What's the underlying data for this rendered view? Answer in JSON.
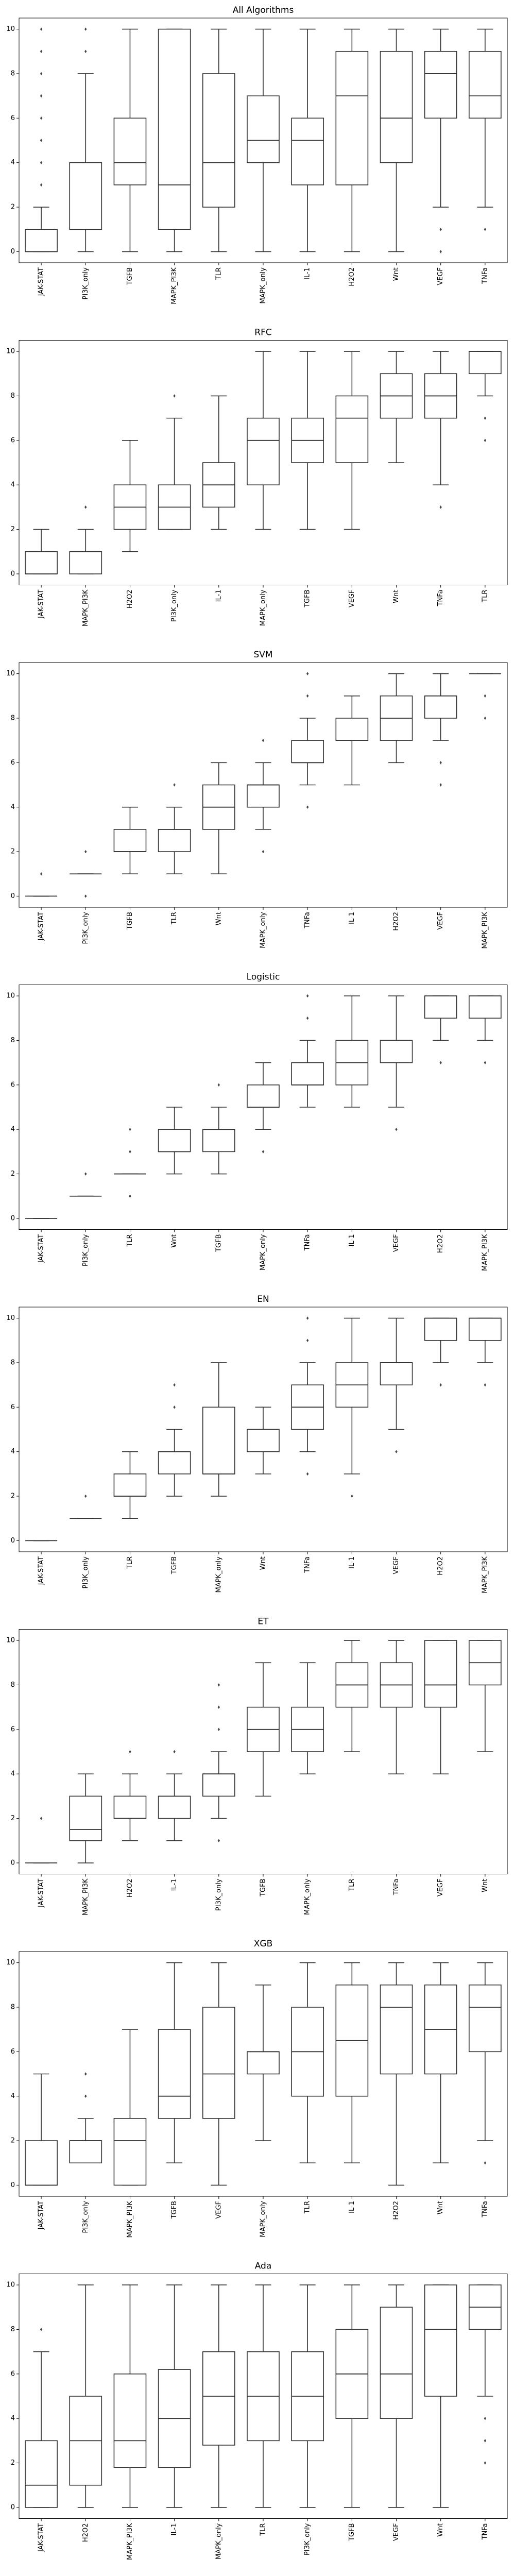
{
  "chart_data": [
    {
      "type": "box",
      "title": "All Algorithms",
      "ylim": [
        -0.5,
        10.5
      ],
      "yticks": [
        0,
        2,
        4,
        6,
        8,
        10
      ],
      "categories": [
        "JAK-STAT",
        "PI3K_only",
        "TGFB",
        "MAPK_PI3K",
        "TLR",
        "MAPK_only",
        "IL-1",
        "H2O2",
        "Wnt",
        "VEGF",
        "TNFa"
      ],
      "boxes": [
        {
          "whislo": 0,
          "q1": 0,
          "med": 0,
          "q3": 1,
          "whishi": 2,
          "fliers": [
            3,
            4,
            5,
            6,
            7,
            8,
            9,
            10
          ]
        },
        {
          "whislo": 0,
          "q1": 1,
          "med": 1,
          "q3": 4,
          "whishi": 8,
          "fliers": [
            9,
            10
          ]
        },
        {
          "whislo": 0,
          "q1": 3,
          "med": 4,
          "q3": 6,
          "whishi": 10,
          "fliers": []
        },
        {
          "whislo": 0,
          "q1": 1,
          "med": 3,
          "q3": 10,
          "whishi": 10,
          "fliers": []
        },
        {
          "whislo": 0,
          "q1": 2,
          "med": 4,
          "q3": 8,
          "whishi": 10,
          "fliers": []
        },
        {
          "whislo": 0,
          "q1": 4,
          "med": 5,
          "q3": 7,
          "whishi": 10,
          "fliers": []
        },
        {
          "whislo": 0,
          "q1": 3,
          "med": 5,
          "q3": 6,
          "whishi": 10,
          "fliers": []
        },
        {
          "whislo": 0,
          "q1": 3,
          "med": 7,
          "q3": 9,
          "whishi": 10,
          "fliers": []
        },
        {
          "whislo": 0,
          "q1": 4,
          "med": 6,
          "q3": 9,
          "whishi": 10,
          "fliers": []
        },
        {
          "whislo": 2,
          "q1": 6,
          "med": 8,
          "q3": 9,
          "whishi": 10,
          "fliers": [
            0,
            1
          ]
        },
        {
          "whislo": 2,
          "q1": 6,
          "med": 7,
          "q3": 9,
          "whishi": 10,
          "fliers": [
            1
          ]
        }
      ]
    },
    {
      "type": "box",
      "title": "RFC",
      "ylim": [
        -0.5,
        10.5
      ],
      "yticks": [
        0,
        2,
        4,
        6,
        8,
        10
      ],
      "categories": [
        "JAK-STAT",
        "MAPK_PI3K",
        "H2O2",
        "PI3K_only",
        "IL-1",
        "MAPK_only",
        "TGFB",
        "VEGF",
        "Wnt",
        "TNFa",
        "TLR"
      ],
      "boxes": [
        {
          "whislo": 0,
          "q1": 0,
          "med": 0,
          "q3": 1,
          "whishi": 2,
          "fliers": []
        },
        {
          "whislo": 0,
          "q1": 0,
          "med": 1,
          "q3": 1,
          "whishi": 2,
          "fliers": [
            3
          ]
        },
        {
          "whislo": 1,
          "q1": 2,
          "med": 3,
          "q3": 4,
          "whishi": 6,
          "fliers": []
        },
        {
          "whislo": 2,
          "q1": 2,
          "med": 3,
          "q3": 4,
          "whishi": 7,
          "fliers": [
            8
          ]
        },
        {
          "whislo": 2,
          "q1": 3,
          "med": 4,
          "q3": 5,
          "whishi": 8,
          "fliers": []
        },
        {
          "whislo": 2,
          "q1": 4,
          "med": 6,
          "q3": 7,
          "whishi": 10,
          "fliers": []
        },
        {
          "whislo": 2,
          "q1": 5,
          "med": 6,
          "q3": 7,
          "whishi": 10,
          "fliers": []
        },
        {
          "whislo": 2,
          "q1": 5,
          "med": 7,
          "q3": 8,
          "whishi": 10,
          "fliers": []
        },
        {
          "whislo": 5,
          "q1": 7,
          "med": 8,
          "q3": 9,
          "whishi": 10,
          "fliers": []
        },
        {
          "whislo": 4,
          "q1": 7,
          "med": 8,
          "q3": 9,
          "whishi": 10,
          "fliers": [
            3
          ]
        },
        {
          "whislo": 8,
          "q1": 9,
          "med": 10,
          "q3": 10,
          "whishi": 10,
          "fliers": [
            6,
            7
          ]
        }
      ]
    },
    {
      "type": "box",
      "title": "SVM",
      "ylim": [
        -0.5,
        10.5
      ],
      "yticks": [
        0,
        2,
        4,
        6,
        8,
        10
      ],
      "categories": [
        "JAK-STAT",
        "PI3K_only",
        "TGFB",
        "TLR",
        "Wnt",
        "MAPK_only",
        "TNFa",
        "IL-1",
        "H2O2",
        "VEGF",
        "MAPK_PI3K"
      ],
      "boxes": [
        {
          "whislo": 0,
          "q1": 0,
          "med": 0,
          "q3": 0,
          "whishi": 0,
          "fliers": [
            1
          ]
        },
        {
          "whislo": 1,
          "q1": 1,
          "med": 1,
          "q3": 1,
          "whishi": 1,
          "fliers": [
            0,
            2
          ]
        },
        {
          "whislo": 1,
          "q1": 2,
          "med": 2,
          "q3": 3,
          "whishi": 4,
          "fliers": []
        },
        {
          "whislo": 1,
          "q1": 2,
          "med": 3,
          "q3": 3,
          "whishi": 4,
          "fliers": [
            5
          ]
        },
        {
          "whislo": 1,
          "q1": 3,
          "med": 4,
          "q3": 5,
          "whishi": 6,
          "fliers": []
        },
        {
          "whislo": 3,
          "q1": 4,
          "med": 5,
          "q3": 5,
          "whishi": 6,
          "fliers": [
            2,
            7
          ]
        },
        {
          "whislo": 5,
          "q1": 6,
          "med": 6,
          "q3": 7,
          "whishi": 8,
          "fliers": [
            4,
            9,
            10
          ]
        },
        {
          "whislo": 5,
          "q1": 7,
          "med": 7,
          "q3": 8,
          "whishi": 9,
          "fliers": []
        },
        {
          "whislo": 6,
          "q1": 7,
          "med": 8,
          "q3": 9,
          "whishi": 10,
          "fliers": []
        },
        {
          "whislo": 7,
          "q1": 8,
          "med": 9,
          "q3": 9,
          "whishi": 10,
          "fliers": [
            5,
            6
          ]
        },
        {
          "whislo": 10,
          "q1": 10,
          "med": 10,
          "q3": 10,
          "whishi": 10,
          "fliers": [
            8,
            9
          ]
        }
      ]
    },
    {
      "type": "box",
      "title": "Logistic",
      "ylim": [
        -0.5,
        10.5
      ],
      "yticks": [
        0,
        2,
        4,
        6,
        8,
        10
      ],
      "categories": [
        "JAK-STAT",
        "PI3K_only",
        "TLR",
        "Wnt",
        "TGFB",
        "MAPK_only",
        "TNFa",
        "IL-1",
        "VEGF",
        "H2O2",
        "MAPK_PI3K"
      ],
      "boxes": [
        {
          "whislo": 0,
          "q1": 0,
          "med": 0,
          "q3": 0,
          "whishi": 0,
          "fliers": []
        },
        {
          "whislo": 1,
          "q1": 1,
          "med": 1,
          "q3": 1,
          "whishi": 1,
          "fliers": [
            2
          ]
        },
        {
          "whislo": 2,
          "q1": 2,
          "med": 2,
          "q3": 2,
          "whishi": 2,
          "fliers": [
            1,
            3,
            4
          ]
        },
        {
          "whislo": 2,
          "q1": 3,
          "med": 3,
          "q3": 4,
          "whishi": 5,
          "fliers": []
        },
        {
          "whislo": 2,
          "q1": 3,
          "med": 4,
          "q3": 4,
          "whishi": 5,
          "fliers": [
            6
          ]
        },
        {
          "whislo": 4,
          "q1": 5,
          "med": 5,
          "q3": 6,
          "whishi": 7,
          "fliers": [
            3
          ]
        },
        {
          "whislo": 5,
          "q1": 6,
          "med": 6,
          "q3": 7,
          "whishi": 8,
          "fliers": [
            9,
            10
          ]
        },
        {
          "whislo": 5,
          "q1": 6,
          "med": 7,
          "q3": 8,
          "whishi": 10,
          "fliers": []
        },
        {
          "whislo": 5,
          "q1": 7,
          "med": 8,
          "q3": 8,
          "whishi": 10,
          "fliers": [
            4
          ]
        },
        {
          "whislo": 8,
          "q1": 9,
          "med": 10,
          "q3": 10,
          "whishi": 10,
          "fliers": [
            7
          ]
        },
        {
          "whislo": 8,
          "q1": 9,
          "med": 10,
          "q3": 10,
          "whishi": 10,
          "fliers": [
            7
          ]
        }
      ]
    },
    {
      "type": "box",
      "title": "EN",
      "ylim": [
        -0.5,
        10.5
      ],
      "yticks": [
        0,
        2,
        4,
        6,
        8,
        10
      ],
      "categories": [
        "JAK-STAT",
        "PI3K_only",
        "TLR",
        "TGFB",
        "MAPK_only",
        "Wnt",
        "TNFa",
        "IL-1",
        "VEGF",
        "H2O2",
        "MAPK_PI3K"
      ],
      "boxes": [
        {
          "whislo": 0,
          "q1": 0,
          "med": 0,
          "q3": 0,
          "whishi": 0,
          "fliers": []
        },
        {
          "whislo": 1,
          "q1": 1,
          "med": 1,
          "q3": 1,
          "whishi": 1,
          "fliers": [
            2
          ]
        },
        {
          "whislo": 1,
          "q1": 2,
          "med": 2,
          "q3": 3,
          "whishi": 4,
          "fliers": []
        },
        {
          "whislo": 2,
          "q1": 3,
          "med": 4,
          "q3": 4,
          "whishi": 5,
          "fliers": [
            6,
            7
          ]
        },
        {
          "whislo": 2,
          "q1": 3,
          "med": 3,
          "q3": 6,
          "whishi": 8,
          "fliers": []
        },
        {
          "whislo": 3,
          "q1": 4,
          "med": 5,
          "q3": 5,
          "whishi": 6,
          "fliers": []
        },
        {
          "whislo": 4,
          "q1": 5,
          "med": 6,
          "q3": 7,
          "whishi": 8,
          "fliers": [
            3,
            9,
            10
          ]
        },
        {
          "whislo": 3,
          "q1": 6,
          "med": 7,
          "q3": 8,
          "whishi": 10,
          "fliers": [
            2
          ]
        },
        {
          "whislo": 5,
          "q1": 7,
          "med": 8,
          "q3": 8,
          "whishi": 10,
          "fliers": [
            4
          ]
        },
        {
          "whislo": 8,
          "q1": 9,
          "med": 10,
          "q3": 10,
          "whishi": 10,
          "fliers": [
            7
          ]
        },
        {
          "whislo": 8,
          "q1": 9,
          "med": 10,
          "q3": 10,
          "whishi": 10,
          "fliers": [
            7
          ]
        }
      ]
    },
    {
      "type": "box",
      "title": "ET",
      "ylim": [
        -0.5,
        10.5
      ],
      "yticks": [
        0,
        2,
        4,
        6,
        8,
        10
      ],
      "categories": [
        "JAK-STAT",
        "MAPK_PI3K",
        "H2O2",
        "IL-1",
        "PI3K_only",
        "TGFB",
        "MAPK_only",
        "TLR",
        "TNFa",
        "VEGF",
        "Wnt"
      ],
      "boxes": [
        {
          "whislo": 0,
          "q1": 0,
          "med": 0,
          "q3": 0,
          "whishi": 0,
          "fliers": [
            2
          ]
        },
        {
          "whislo": 0,
          "q1": 1,
          "med": 1.5,
          "q3": 3,
          "whishi": 4,
          "fliers": []
        },
        {
          "whislo": 1,
          "q1": 2,
          "med": 2,
          "q3": 3,
          "whishi": 4,
          "fliers": [
            5
          ]
        },
        {
          "whislo": 1,
          "q1": 2,
          "med": 3,
          "q3": 3,
          "whishi": 4,
          "fliers": [
            5
          ]
        },
        {
          "whislo": 2,
          "q1": 3,
          "med": 4,
          "q3": 4,
          "whishi": 5,
          "fliers": [
            1,
            6,
            7,
            8
          ]
        },
        {
          "whislo": 3,
          "q1": 5,
          "med": 6,
          "q3": 7,
          "whishi": 9,
          "fliers": []
        },
        {
          "whislo": 4,
          "q1": 5,
          "med": 6,
          "q3": 7,
          "whishi": 9,
          "fliers": []
        },
        {
          "whislo": 5,
          "q1": 7,
          "med": 8,
          "q3": 9,
          "whishi": 10,
          "fliers": []
        },
        {
          "whislo": 4,
          "q1": 7,
          "med": 8,
          "q3": 9,
          "whishi": 10,
          "fliers": []
        },
        {
          "whislo": 4,
          "q1": 7,
          "med": 8,
          "q3": 10,
          "whishi": 10,
          "fliers": []
        },
        {
          "whislo": 5,
          "q1": 8,
          "med": 9,
          "q3": 10,
          "whishi": 10,
          "fliers": []
        }
      ]
    },
    {
      "type": "box",
      "title": "XGB",
      "ylim": [
        -0.5,
        10.5
      ],
      "yticks": [
        0,
        2,
        4,
        6,
        8,
        10
      ],
      "categories": [
        "JAK-STAT",
        "PI3K_only",
        "MAPK_PI3K",
        "TGFB",
        "VEGF",
        "MAPK_only",
        "TLR",
        "IL-1",
        "H2O2",
        "Wnt",
        "TNFa"
      ],
      "boxes": [
        {
          "whislo": 0,
          "q1": 0,
          "med": 0,
          "q3": 2,
          "whishi": 5,
          "fliers": []
        },
        {
          "whislo": 1,
          "q1": 1,
          "med": 2,
          "q3": 2,
          "whishi": 3,
          "fliers": [
            4,
            5
          ]
        },
        {
          "whislo": 0,
          "q1": 0,
          "med": 2,
          "q3": 3,
          "whishi": 7,
          "fliers": []
        },
        {
          "whislo": 1,
          "q1": 3,
          "med": 4,
          "q3": 7,
          "whishi": 10,
          "fliers": []
        },
        {
          "whislo": 0,
          "q1": 3,
          "med": 5,
          "q3": 8,
          "whishi": 10,
          "fliers": []
        },
        {
          "whislo": 2,
          "q1": 5,
          "med": 6,
          "q3": 6,
          "whishi": 9,
          "fliers": []
        },
        {
          "whislo": 1,
          "q1": 4,
          "med": 6,
          "q3": 8,
          "whishi": 10,
          "fliers": []
        },
        {
          "whislo": 1,
          "q1": 4,
          "med": 6.5,
          "q3": 9,
          "whishi": 10,
          "fliers": []
        },
        {
          "whislo": 0,
          "q1": 5,
          "med": 8,
          "q3": 9,
          "whishi": 10,
          "fliers": []
        },
        {
          "whislo": 1,
          "q1": 5,
          "med": 7,
          "q3": 9,
          "whishi": 10,
          "fliers": []
        },
        {
          "whislo": 2,
          "q1": 6,
          "med": 8,
          "q3": 9,
          "whishi": 10,
          "fliers": [
            1
          ]
        }
      ]
    },
    {
      "type": "box",
      "title": "Ada",
      "ylim": [
        -0.5,
        10.5
      ],
      "yticks": [
        0,
        2,
        4,
        6,
        8,
        10
      ],
      "categories": [
        "JAK-STAT",
        "H2O2",
        "MAPK_PI3K",
        "IL-1",
        "MAPK_only",
        "TLR",
        "PI3K_only",
        "TGFB",
        "VEGF",
        "Wnt",
        "TNFa"
      ],
      "boxes": [
        {
          "whislo": 0,
          "q1": 0,
          "med": 1,
          "q3": 3,
          "whishi": 7,
          "fliers": [
            8
          ]
        },
        {
          "whislo": 0,
          "q1": 1,
          "med": 3,
          "q3": 5,
          "whishi": 10,
          "fliers": []
        },
        {
          "whislo": 0,
          "q1": 1.8,
          "med": 3,
          "q3": 6,
          "whishi": 10,
          "fliers": []
        },
        {
          "whislo": 0,
          "q1": 1.8,
          "med": 4,
          "q3": 6.2,
          "whishi": 10,
          "fliers": []
        },
        {
          "whislo": 0,
          "q1": 2.8,
          "med": 5,
          "q3": 7,
          "whishi": 10,
          "fliers": []
        },
        {
          "whislo": 0,
          "q1": 3,
          "med": 5,
          "q3": 7,
          "whishi": 10,
          "fliers": []
        },
        {
          "whislo": 0,
          "q1": 3,
          "med": 5,
          "q3": 7,
          "whishi": 10,
          "fliers": []
        },
        {
          "whislo": 0,
          "q1": 4,
          "med": 6,
          "q3": 8,
          "whishi": 10,
          "fliers": []
        },
        {
          "whislo": 0,
          "q1": 4,
          "med": 6,
          "q3": 9,
          "whishi": 10,
          "fliers": []
        },
        {
          "whislo": 0,
          "q1": 5,
          "med": 8,
          "q3": 10,
          "whishi": 10,
          "fliers": []
        },
        {
          "whislo": 5,
          "q1": 8,
          "med": 9,
          "q3": 10,
          "whishi": 10,
          "fliers": [
            2,
            3,
            4
          ]
        }
      ]
    }
  ]
}
